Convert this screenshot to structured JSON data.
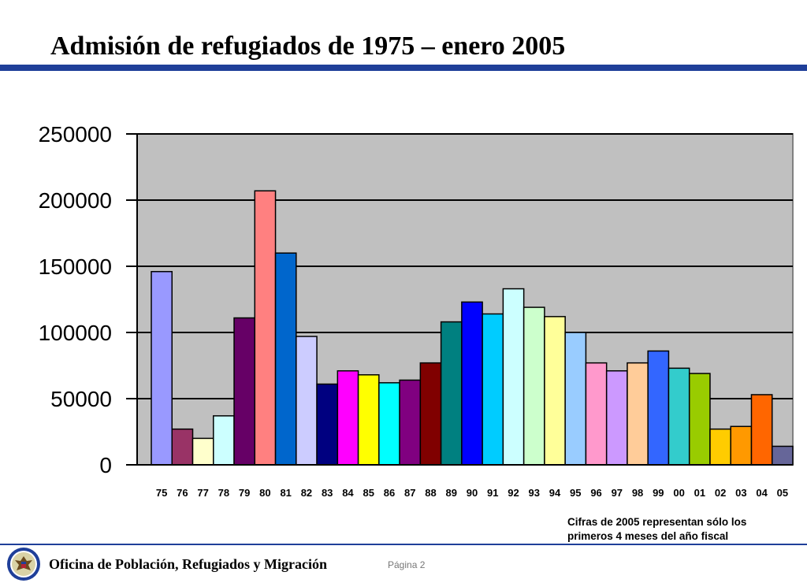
{
  "slide": {
    "title": "Admisión de refugiados de 1975 – enero 2005",
    "note_line1": "Cifras de 2005 representan sólo los",
    "note_line2": "primeros 4 meses del año fiscal",
    "footer_office": "Oficina de Población, Refugiados y Migración",
    "page_label": "Página",
    "page_number": "2",
    "seal_icon": "department-seal-icon"
  },
  "chart_data": {
    "type": "bar",
    "title": "",
    "xlabel": "",
    "ylabel": "",
    "ylim": [
      0,
      250000
    ],
    "yticks": [
      0,
      50000,
      100000,
      150000,
      200000,
      250000
    ],
    "grid": true,
    "legend": "none",
    "plot_background": "#c0c0c0",
    "categories": [
      "75",
      "76",
      "77",
      "78",
      "79",
      "80",
      "81",
      "82",
      "83",
      "84",
      "85",
      "86",
      "87",
      "88",
      "89",
      "90",
      "91",
      "92",
      "93",
      "94",
      "95",
      "96",
      "97",
      "98",
      "99",
      "00",
      "01",
      "02",
      "03",
      "04",
      "05"
    ],
    "values": [
      146000,
      27000,
      20000,
      37000,
      111000,
      207000,
      160000,
      97000,
      61000,
      71000,
      68000,
      62000,
      64000,
      77000,
      108000,
      123000,
      114000,
      133000,
      119000,
      112000,
      100000,
      77000,
      71000,
      77000,
      86000,
      73000,
      69000,
      27000,
      29000,
      53000,
      14000
    ],
    "colors": [
      "#9999ff",
      "#993366",
      "#ffffcc",
      "#ccffff",
      "#660066",
      "#ff8080",
      "#0066cc",
      "#ccccff",
      "#000080",
      "#ff00ff",
      "#ffff00",
      "#00ffff",
      "#800080",
      "#800000",
      "#008080",
      "#0000ff",
      "#00ccff",
      "#ccffff",
      "#ccffcc",
      "#ffff99",
      "#99ccff",
      "#ff99cc",
      "#cc99ff",
      "#ffcc99",
      "#3366ff",
      "#33cccc",
      "#99cc00",
      "#ffcc00",
      "#ff9900",
      "#ff6600",
      "#666699"
    ]
  }
}
